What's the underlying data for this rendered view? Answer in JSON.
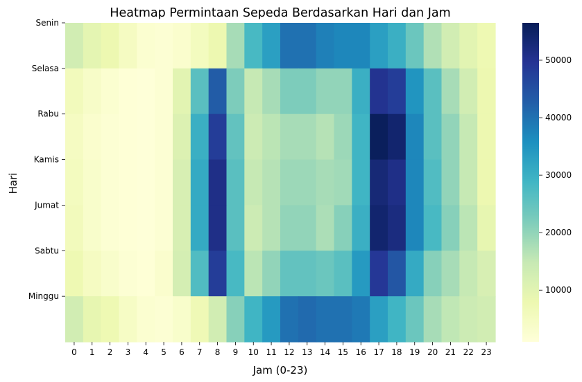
{
  "chart_data": {
    "type": "heatmap",
    "title": "Heatmap Permintaan Sepeda Berdasarkan Hari dan Jam",
    "xlabel": "Jam (0-23)",
    "ylabel": "Hari",
    "x_categories": [
      "0",
      "1",
      "2",
      "3",
      "4",
      "5",
      "6",
      "7",
      "8",
      "9",
      "10",
      "11",
      "12",
      "13",
      "14",
      "15",
      "16",
      "17",
      "18",
      "19",
      "20",
      "21",
      "22",
      "23"
    ],
    "y_categories": [
      "Senin",
      "Selasa",
      "Rabu",
      "Kamis",
      "Jumat",
      "Sabtu",
      "Minggu"
    ],
    "values": [
      [
        13000,
        9500,
        8000,
        5000,
        2500,
        2000,
        3000,
        5500,
        8000,
        18000,
        28000,
        33000,
        40000,
        40000,
        38000,
        37000,
        37000,
        33000,
        30000,
        24000,
        17000,
        13000,
        10000,
        7500
      ],
      [
        6000,
        4000,
        2500,
        1500,
        1200,
        2000,
        10000,
        26000,
        43000,
        22000,
        15000,
        18000,
        22000,
        22000,
        20000,
        20000,
        30000,
        50000,
        48000,
        35000,
        26000,
        18000,
        13000,
        8000
      ],
      [
        5000,
        3000,
        2000,
        1500,
        1200,
        2000,
        11000,
        30000,
        48000,
        25000,
        14000,
        16000,
        18000,
        18000,
        16500,
        19000,
        29000,
        56000,
        54000,
        37000,
        26000,
        20000,
        15000,
        8000
      ],
      [
        5500,
        3500,
        2000,
        1500,
        1200,
        2000,
        12000,
        31000,
        51000,
        26000,
        15000,
        16500,
        19000,
        19000,
        18000,
        18500,
        29000,
        53000,
        51000,
        37000,
        27000,
        20000,
        15000,
        8000
      ],
      [
        6000,
        3500,
        2000,
        1500,
        1200,
        2000,
        12000,
        31000,
        51000,
        26000,
        14000,
        16500,
        20000,
        20000,
        17500,
        21000,
        30000,
        54000,
        52000,
        37000,
        28000,
        21000,
        16000,
        9000
      ],
      [
        7500,
        5000,
        3500,
        2000,
        1500,
        3000,
        12500,
        27000,
        48000,
        28000,
        16000,
        20000,
        25000,
        25000,
        24000,
        26000,
        34000,
        49000,
        44000,
        31000,
        21000,
        18000,
        15000,
        12000
      ],
      [
        13000,
        9000,
        7500,
        4500,
        2500,
        2000,
        3500,
        7000,
        13000,
        21000,
        29000,
        34000,
        40000,
        41000,
        40000,
        40000,
        39000,
        33000,
        29000,
        24000,
        18000,
        15500,
        14000,
        13000
      ]
    ],
    "vmin": 1000,
    "vmax": 56500,
    "colormap": "YlGnBu",
    "colorbar_ticks": [
      10000,
      20000,
      30000,
      40000,
      50000
    ],
    "grid": false
  }
}
